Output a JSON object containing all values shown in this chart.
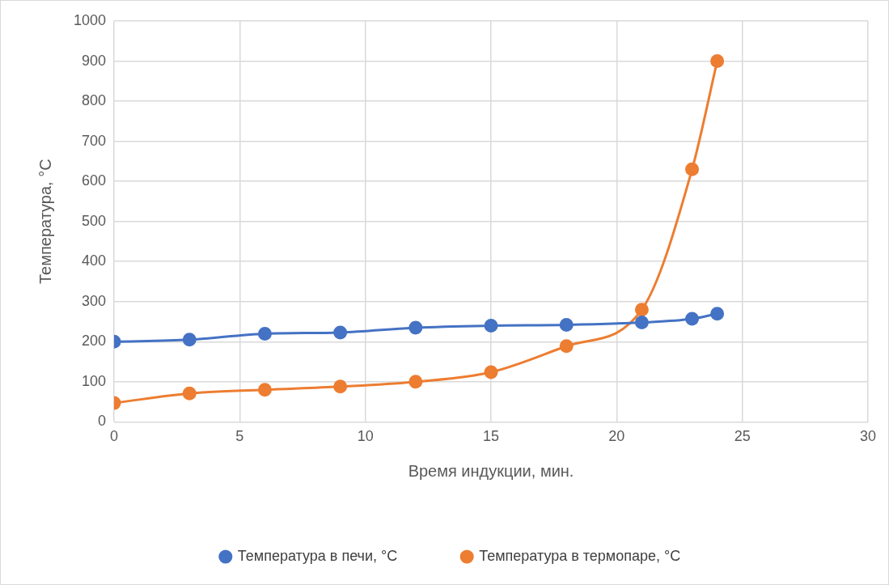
{
  "chart_data": {
    "type": "line",
    "xlabel": "Время индукции, мин.",
    "ylabel": "Температура, °C",
    "x": [
      0,
      3,
      6,
      9,
      12,
      15,
      18,
      21,
      23,
      24
    ],
    "series": [
      {
        "name": "Температура в печи, °C",
        "color": "#4472c4",
        "values": [
          200,
          205,
          220,
          223,
          235,
          240,
          242,
          248,
          257,
          270
        ]
      },
      {
        "name": "Температура в термопаре, °C",
        "color": "#ed7d31",
        "values": [
          47,
          71,
          80,
          88,
          100,
          124,
          189,
          280,
          630,
          900
        ]
      }
    ],
    "xlim": [
      0,
      30
    ],
    "xticks": [
      0,
      5,
      10,
      15,
      20,
      25,
      30
    ],
    "ylim": [
      0,
      1000
    ],
    "yticks": [
      0,
      100,
      200,
      300,
      400,
      500,
      600,
      700,
      800,
      900,
      1000
    ],
    "grid": true,
    "legend": "bottom",
    "marker": "circle",
    "line_style": "solid"
  }
}
